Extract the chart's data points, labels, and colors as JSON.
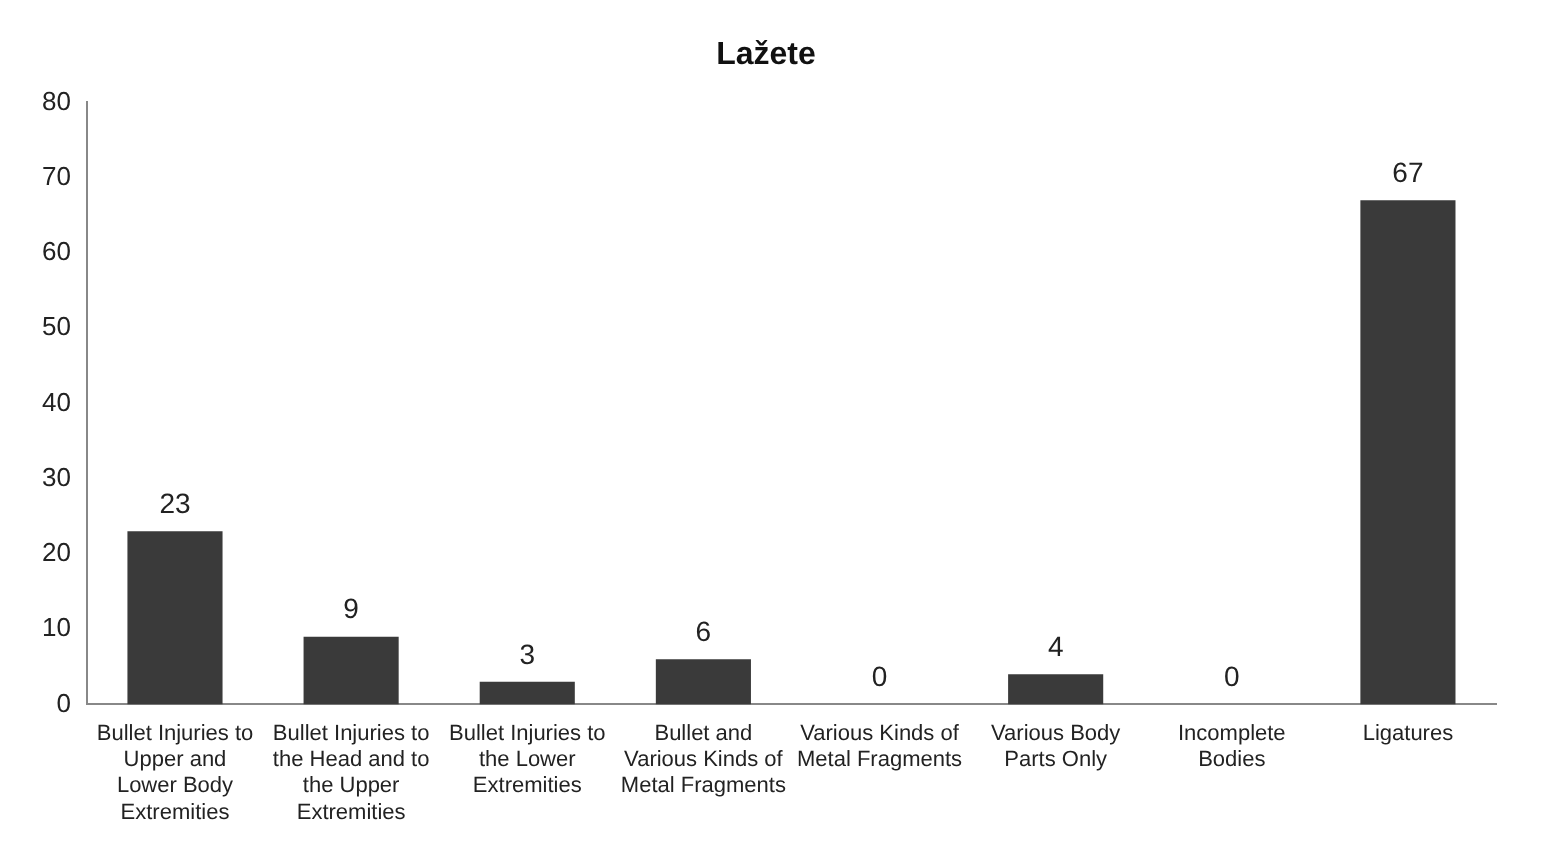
{
  "chart_data": {
    "type": "bar",
    "title": "Lažete",
    "categories": [
      "Bullet Injuries to Upper and Lower Body Extremities",
      "Bullet Injuries to the Head and to the Upper Extremities",
      "Bullet Injuries to the Lower Extremities",
      "Bullet and Various Kinds of Metal Fragments",
      "Various Kinds of Metal Fragments",
      "Various Body Parts Only",
      "Incomplete Bodies",
      "Ligatures"
    ],
    "values": [
      23,
      9,
      3,
      6,
      0,
      4,
      0,
      67
    ],
    "color": "#3a3a3a",
    "ylim": [
      0,
      80
    ],
    "yticks": [
      0,
      10,
      20,
      30,
      40,
      50,
      60,
      70,
      80
    ],
    "grid": false,
    "legend": false,
    "data_labels": true
  }
}
